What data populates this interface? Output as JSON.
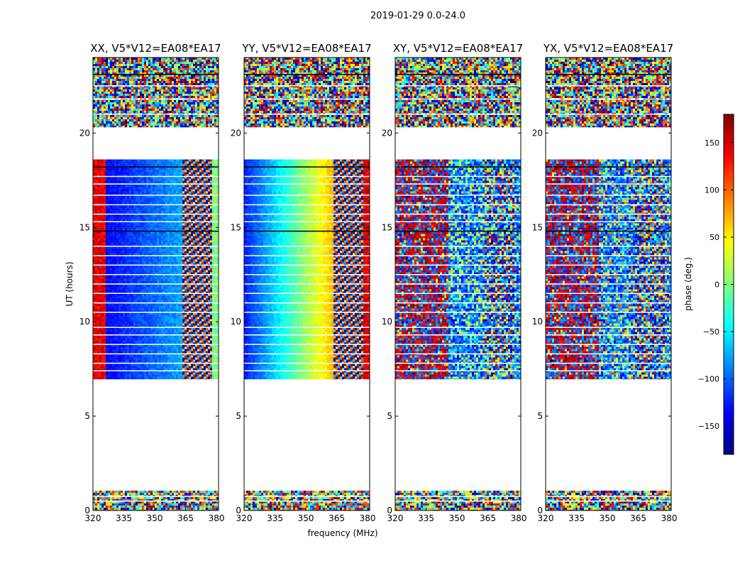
{
  "figure": {
    "suptitle": "2019-01-29 0.0-24.0",
    "xlabel": "frequency (MHz)",
    "ylabel": "UT (hours)"
  },
  "chart_data": {
    "type": "heatmap",
    "title": "2019-01-29 0.0-24.0",
    "xlabel": "frequency (MHz)",
    "ylabel": "UT (hours)",
    "xlim": [
      320,
      381
    ],
    "ylim": [
      0,
      24
    ],
    "xticks": [
      320,
      335,
      350,
      365,
      380
    ],
    "yticks": [
      0,
      5,
      10,
      15,
      20
    ],
    "colormap": "jet",
    "panels": [
      {
        "title": "XX, V5*V12=EA08*EA17",
        "kind": "XX"
      },
      {
        "title": "YY, V5*V12=EA08*EA17",
        "kind": "YY"
      },
      {
        "title": "XY, V5*V12=EA08*EA17",
        "kind": "XY"
      },
      {
        "title": "YX, V5*V12=EA08*EA17",
        "kind": "YX"
      }
    ],
    "data_time_ranges_hours": [
      [
        0.0,
        1.05
      ],
      [
        6.95,
        18.6
      ],
      [
        20.3,
        24.0
      ]
    ],
    "horizontal_gap_lines_hours": [
      0.5,
      0.75,
      7.4,
      7.8,
      8.3,
      8.8,
      9.3,
      9.7,
      10.5,
      11.0,
      11.5,
      12.0,
      12.5,
      13.0,
      13.5,
      14.0,
      14.8,
      15.3,
      15.7,
      16.2,
      16.7,
      17.3,
      17.7,
      18.2,
      21.0,
      21.8,
      22.5,
      23.1
    ],
    "ripple_band_mhz": [
      363,
      377
    ],
    "colorbar": {
      "label": "phase (deg.)",
      "range": [
        -180,
        180
      ],
      "ticks": [
        -150,
        -100,
        -50,
        0,
        50,
        100,
        150
      ],
      "ticklabels": [
        "−150",
        "−100",
        "−50",
        "0",
        "50",
        "100",
        "150"
      ],
      "colors": [
        "#00007f",
        "#0000ff",
        "#007fff",
        "#00ffff",
        "#7fff7f",
        "#ffff00",
        "#ff7f00",
        "#ff0000",
        "#7f0000"
      ]
    }
  }
}
